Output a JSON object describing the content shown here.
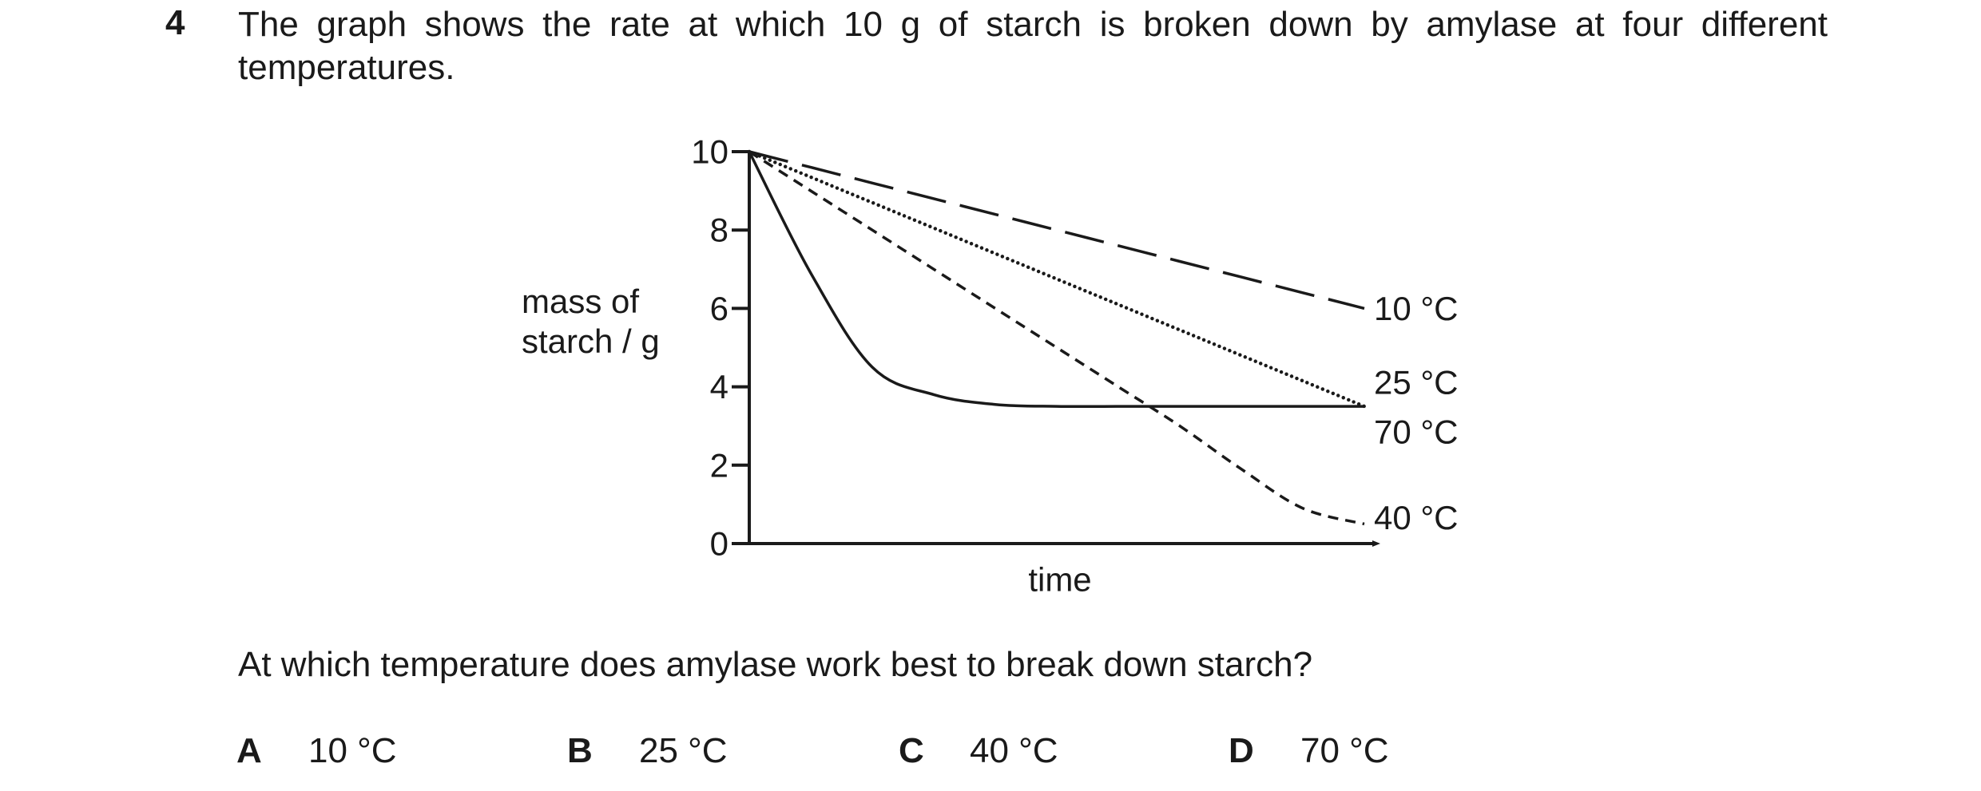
{
  "question": {
    "number": "4",
    "stem": "The graph shows the rate at which 10 g of starch is broken down by amylase at four different temperatures.",
    "prompt": "At which temperature does amylase work best to break down starch?"
  },
  "chart_data": {
    "type": "line",
    "ylabel_lines": [
      "mass of",
      "starch / g"
    ],
    "xlabel": "time",
    "y_ticks": [
      0,
      2,
      4,
      6,
      8,
      10
    ],
    "ylim": [
      0,
      10
    ],
    "xlim": [
      0,
      100
    ],
    "grid": false,
    "x": [
      0,
      10,
      20,
      30,
      40,
      50,
      60,
      70,
      80,
      90,
      100
    ],
    "series": [
      {
        "name": "10 °C",
        "style": "long-dash",
        "values": [
          10,
          9.6,
          9.2,
          8.8,
          8.4,
          8.0,
          7.6,
          7.2,
          6.8,
          6.4,
          6.0
        ]
      },
      {
        "name": "25 °C",
        "style": "dotted",
        "values": [
          10,
          9.35,
          8.7,
          8.05,
          7.4,
          6.75,
          6.1,
          5.45,
          4.8,
          4.15,
          3.5
        ]
      },
      {
        "name": "70 °C",
        "style": "solid",
        "values": [
          10,
          6.9,
          4.5,
          3.8,
          3.55,
          3.5,
          3.5,
          3.5,
          3.5,
          3.5,
          3.5
        ]
      },
      {
        "name": "40 °C",
        "style": "short-dash",
        "values": [
          10,
          9.0,
          8.0,
          7.0,
          6.0,
          5.0,
          4.0,
          3.0,
          1.9,
          0.9,
          0.5
        ]
      }
    ]
  },
  "options": [
    {
      "letter": "A",
      "text": "10 °C"
    },
    {
      "letter": "B",
      "text": "25 °C"
    },
    {
      "letter": "C",
      "text": "40 °C"
    },
    {
      "letter": "D",
      "text": "70 °C"
    }
  ]
}
